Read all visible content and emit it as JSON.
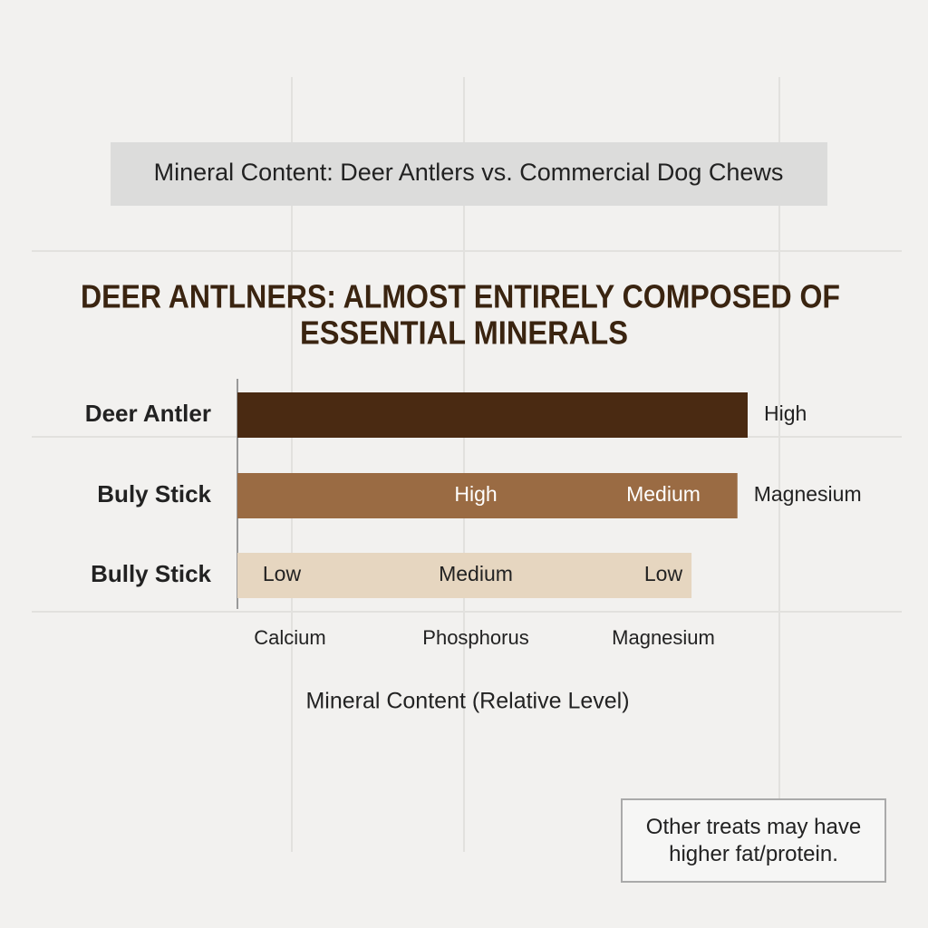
{
  "chart_data": {
    "type": "bar",
    "orientation": "horizontal",
    "title": "Mineral Content: Deer Antlers vs. Commercial Dog Chews",
    "heading": [
      "DEER ANTLNERS: ALMOST ENTIRELY COMPOSED OF",
      "ESSENTIAL MINERALS"
    ],
    "categories": [
      "Deer Antler",
      "Buly Stick",
      "Bully Stick"
    ],
    "values": [
      100,
      98,
      89
    ],
    "colors": [
      "#4a2a12",
      "#9a6b43",
      "#e6d6c0"
    ],
    "end_labels": [
      "High",
      "Magnesium",
      null
    ],
    "minerals": [
      "Calcium",
      "Phosphorus",
      "Magnesium"
    ],
    "segment_labels": [
      [
        null,
        null,
        null
      ],
      [
        null,
        "High",
        "Medium"
      ],
      [
        "Low",
        "Medium",
        "Low"
      ]
    ],
    "x_label": "Mineral Content (Relative Level)",
    "note": "Other treats may have higher fat/protein."
  }
}
